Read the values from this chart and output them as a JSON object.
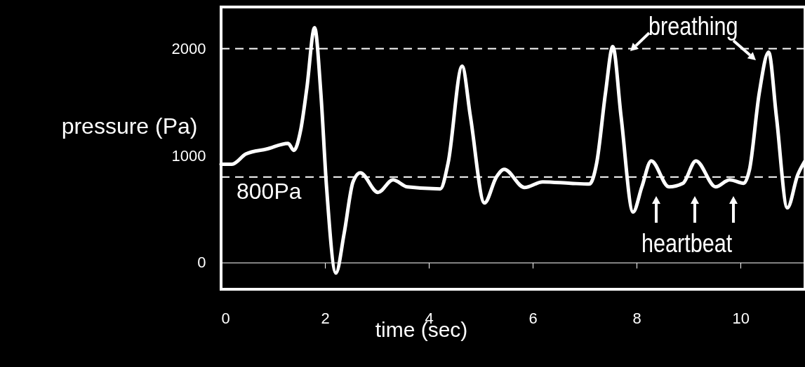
{
  "chart_data": {
    "type": "line",
    "xlabel": "time  (sec)",
    "ylabel": "pressure (Pa)",
    "xlim": [
      0,
      11.24
    ],
    "ylim": [
      -250,
      2390
    ],
    "xticks": [
      0,
      2,
      4,
      6,
      8,
      10
    ],
    "yticks": [
      0,
      1000,
      2000
    ],
    "grid": false,
    "line_style": "solid",
    "series": [
      {
        "color": "#ffffff",
        "x": [
          0,
          0.21,
          0.48,
          0.88,
          1.29,
          1.4,
          1.53,
          1.65,
          1.8,
          1.92,
          2.03,
          2.21,
          2.37,
          2.54,
          2.68,
          3.02,
          3.31,
          3.58,
          4.22,
          4.37,
          4.64,
          4.8,
          5.07,
          5.3,
          5.45,
          5.84,
          6.19,
          6.73,
          7.09,
          7.23,
          7.4,
          7.54,
          7.7,
          7.93,
          8.1,
          8.28,
          8.62,
          8.89,
          9.14,
          9.52,
          9.79,
          10.06,
          10.17,
          10.36,
          10.54,
          10.69,
          10.9,
          11.1,
          11.24
        ],
        "values": [
          920,
          920,
          1016,
          1062,
          1115,
          1049,
          1233,
          1627,
          2197,
          1587,
          708,
          -98,
          275,
          754,
          839,
          656,
          774,
          708,
          689,
          931,
          1836,
          1364,
          557,
          800,
          872,
          702,
          754,
          741,
          734,
          931,
          1587,
          2020,
          1364,
          472,
          708,
          951,
          708,
          741,
          951,
          708,
          774,
          741,
          866,
          1587,
          1967,
          1364,
          511,
          820,
          951
        ]
      }
    ],
    "ref_lines": [
      {
        "axis": "y",
        "value": 2000,
        "line_style": "dashed",
        "color": "#ffffff"
      },
      {
        "axis": "y",
        "value": 800,
        "label": "800Pa",
        "line_style": "dashed",
        "color": "#ffffff"
      }
    ],
    "annotations": [
      "breathing",
      "heartbeat"
    ]
  }
}
